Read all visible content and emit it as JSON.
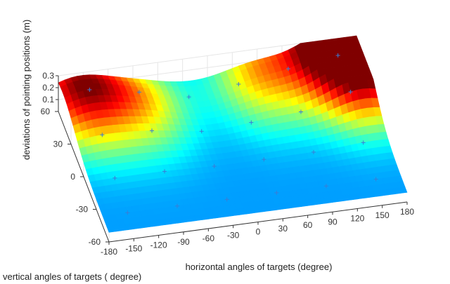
{
  "chart_data": {
    "type": "surface3d",
    "xlabel": "horizontal angles of targets (degree)",
    "ylabel": "vertical angles of targets ( degree)",
    "zlabel": "deviations of pointing positions (m)",
    "x_ticks": [
      "-180",
      "-150",
      "-120",
      "-90",
      "-60",
      "-30",
      "0",
      "30",
      "60",
      "90",
      "120",
      "150",
      "180"
    ],
    "y_ticks": [
      "-60",
      "-30",
      "0",
      "30",
      "60"
    ],
    "z_ticks": [
      "0.1",
      "0.2",
      "0.3"
    ],
    "xlim": [
      -180,
      180
    ],
    "ylim": [
      -60,
      60
    ],
    "zlim": [
      0,
      0.3
    ],
    "colormap": "jet",
    "grid": true,
    "z_peaks": [
      {
        "x": -160,
        "y": 50,
        "z": 0.27
      },
      {
        "x": 170,
        "y": 40,
        "z": 0.3
      },
      {
        "x": 150,
        "y": 60,
        "z": 0.27
      },
      {
        "x": 60,
        "y": 50,
        "z": 0.2
      },
      {
        "x": -90,
        "y": 40,
        "z": 0.18
      }
    ],
    "z_baseline": 0.08,
    "colors": {
      "axis": "#333333",
      "grid": "#e6e6e6",
      "marker": "#3a7dd6"
    }
  }
}
